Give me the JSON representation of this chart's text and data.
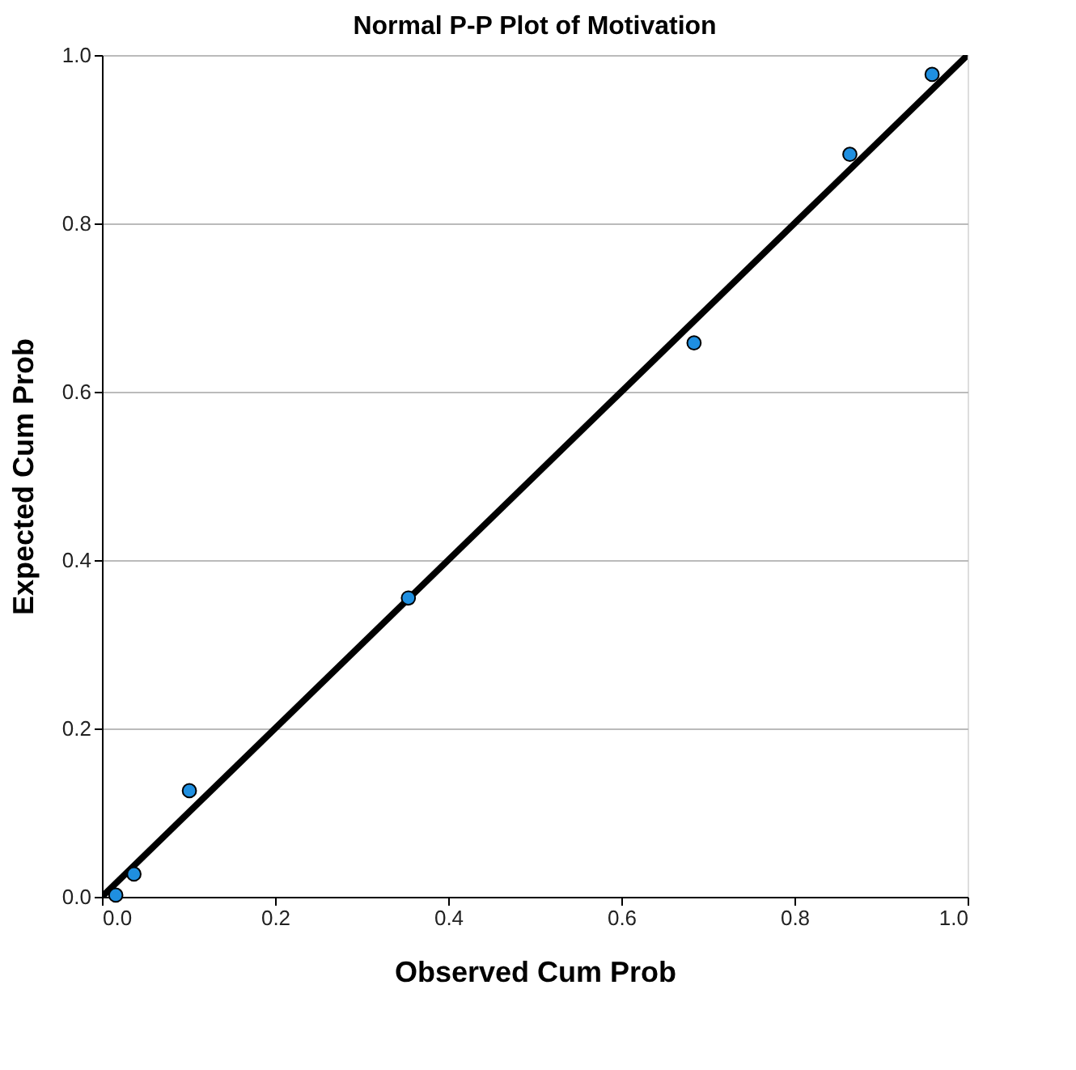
{
  "chart_data": {
    "type": "scatter",
    "title": "Normal P-P Plot of Motivation",
    "xlabel": "Observed Cum Prob",
    "ylabel": "Expected Cum Prob",
    "xlim": [
      0,
      1
    ],
    "ylim": [
      0,
      1
    ],
    "xticks": [
      {
        "value": 0,
        "label": "0.0"
      },
      {
        "value": 0.2,
        "label": "0.2"
      },
      {
        "value": 0.4,
        "label": "0.4"
      },
      {
        "value": 0.6,
        "label": "0.6"
      },
      {
        "value": 0.8,
        "label": "0.8"
      },
      {
        "value": 1,
        "label": "1.0"
      }
    ],
    "yticks": [
      {
        "value": 0,
        "label": "0.0"
      },
      {
        "value": 0.2,
        "label": "0.2"
      },
      {
        "value": 0.4,
        "label": "0.4"
      },
      {
        "value": 0.6,
        "label": "0.6"
      },
      {
        "value": 0.8,
        "label": "0.8"
      },
      {
        "value": 1,
        "label": "1.0"
      }
    ],
    "grid": "y",
    "series": [
      {
        "color": "#1f8fe0",
        "marker": "circle",
        "x": [
          0.016,
          0.037,
          0.101,
          0.354,
          0.684,
          0.864,
          0.959
        ],
        "values": [
          0.002,
          0.027,
          0.126,
          0.355,
          0.658,
          0.882,
          0.977
        ]
      },
      {
        "type": "line",
        "color": "#000000",
        "x": [
          0,
          1
        ],
        "values": [
          0,
          1
        ],
        "line_style": "solid",
        "marker": "none"
      }
    ]
  }
}
